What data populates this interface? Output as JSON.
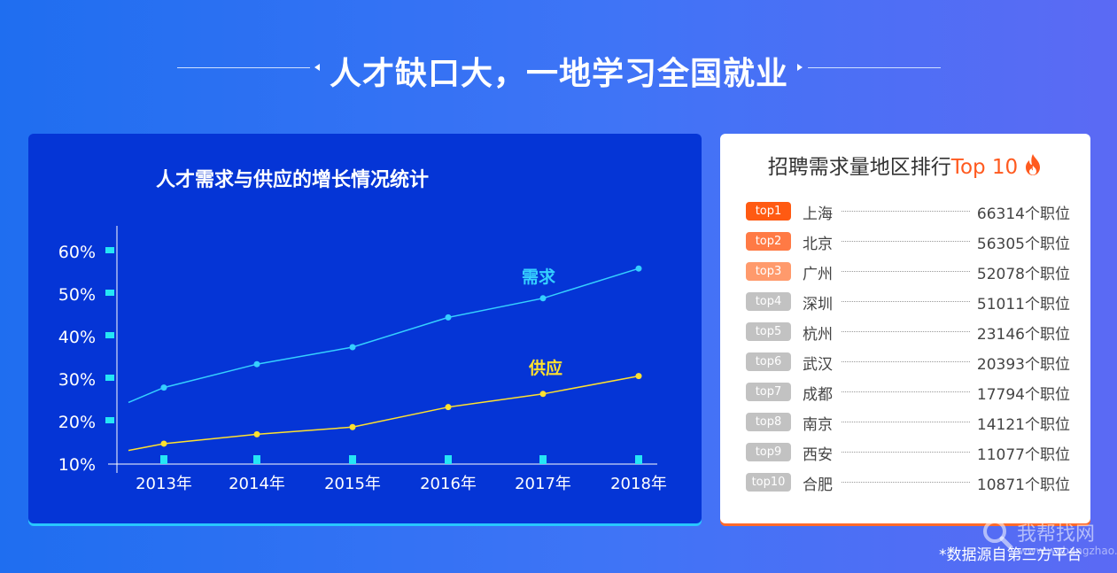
{
  "page": {
    "headline": "人才缺口大，一地学习全国就业"
  },
  "chart_data": {
    "type": "line",
    "title": "人才需求与供应的增长情况统计",
    "categories": [
      "2013年",
      "2014年",
      "2015年",
      "2016年",
      "2017年",
      "2018年"
    ],
    "y_ticks": [
      "10%",
      "20%",
      "30%",
      "40%",
      "50%",
      "60%"
    ],
    "ylim": [
      10,
      60
    ],
    "series": [
      {
        "name": "需求",
        "values": [
          28,
          33.5,
          37.5,
          44.5,
          49,
          56
        ],
        "start_value": 24.5,
        "color": "#35d0ff"
      },
      {
        "name": "供应",
        "values": [
          14.8,
          17,
          18.7,
          23.4,
          26.5,
          30.7
        ],
        "start_value": 13.2,
        "color": "#ffe12e"
      }
    ],
    "tick_marker_color": "#25e6f5"
  },
  "ranking": {
    "title": "招聘需求量地区排行",
    "title_accent": "Top 10",
    "fire_icon": "fire-icon",
    "items": [
      {
        "badge": "top1",
        "city": "上海",
        "count": "66314个职位",
        "color": "#ff5a12"
      },
      {
        "badge": "top2",
        "city": "北京",
        "count": "56305个职位",
        "color": "#ff7a45"
      },
      {
        "badge": "top3",
        "city": "广州",
        "count": "52078个职位",
        "color": "#ff9a6c"
      },
      {
        "badge": "top4",
        "city": "深圳",
        "count": "51011个职位",
        "color": "#c2c2c2"
      },
      {
        "badge": "top5",
        "city": "杭州",
        "count": "23146个职位",
        "color": "#c2c2c2"
      },
      {
        "badge": "top6",
        "city": "武汉",
        "count": "20393个职位",
        "color": "#c2c2c2"
      },
      {
        "badge": "top7",
        "city": "成都",
        "count": "17794个职位",
        "color": "#c2c2c2"
      },
      {
        "badge": "top8",
        "city": "南京",
        "count": "14121个职位",
        "color": "#c2c2c2"
      },
      {
        "badge": "top9",
        "city": "西安",
        "count": "11077个职位",
        "color": "#c2c2c2"
      },
      {
        "badge": "top10",
        "city": "合肥",
        "count": "10871个职位",
        "color": "#c2c2c2"
      }
    ]
  },
  "footnote": "*数据源自第三方平台",
  "watermark": {
    "text": "我帮找网",
    "url": "www.wobangzhao.com"
  }
}
